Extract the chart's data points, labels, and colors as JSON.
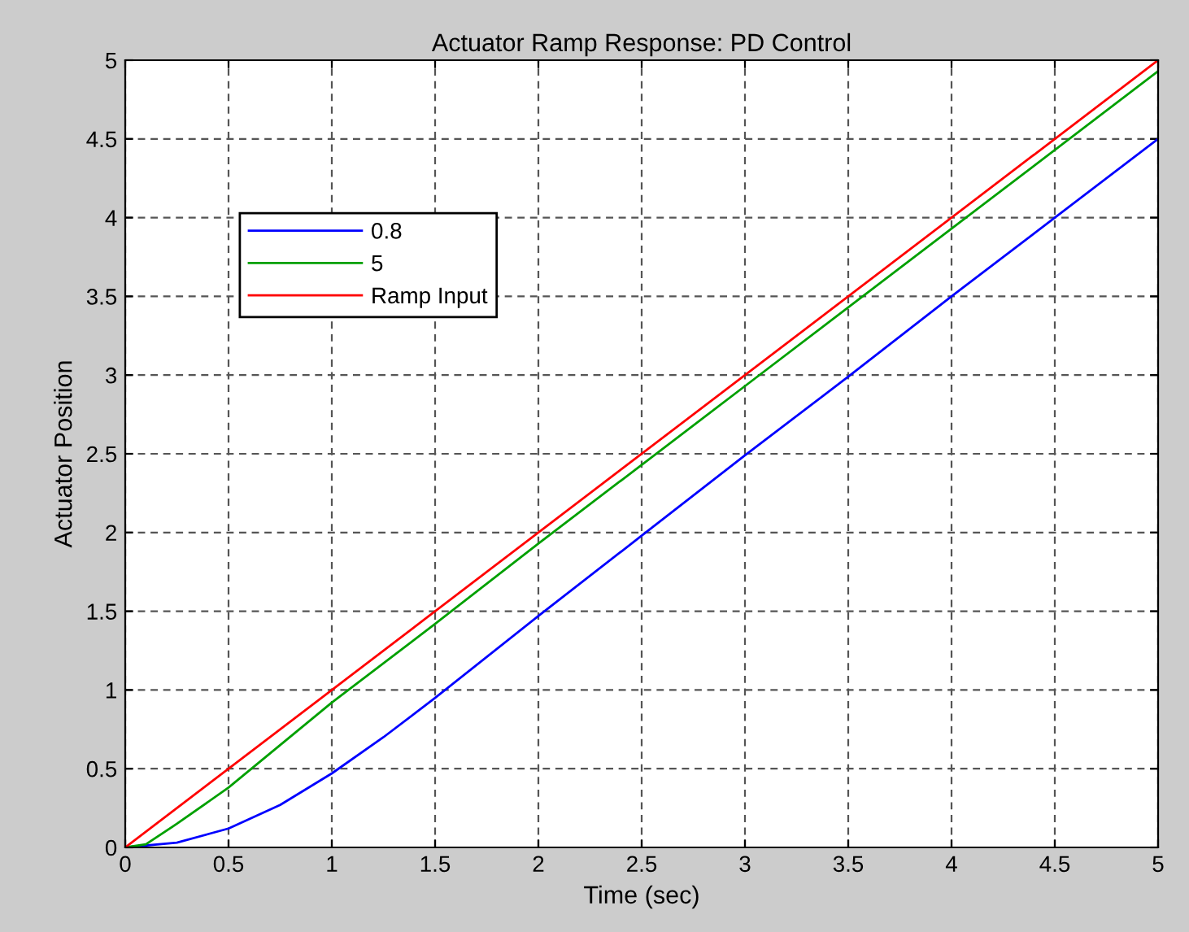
{
  "chart_data": {
    "type": "line",
    "title": "Actuator Ramp Response: PD Control",
    "xlabel": "Time (sec)",
    "ylabel": "Actuator Position",
    "series": [
      {
        "name": "0.8",
        "color": "#0000ff",
        "x": [
          0,
          0.25,
          0.5,
          0.75,
          1,
          1.25,
          1.5,
          2,
          2.5,
          3,
          3.5,
          4,
          4.5,
          5
        ],
        "values": [
          0,
          0.03,
          0.12,
          0.27,
          0.47,
          0.7,
          0.95,
          1.47,
          1.98,
          2.49,
          2.99,
          3.5,
          4.0,
          4.5
        ]
      },
      {
        "name": "5",
        "color": "#00a000",
        "x": [
          0,
          0.1,
          0.25,
          0.5,
          0.75,
          1,
          1.5,
          2,
          3,
          4,
          5
        ],
        "values": [
          0,
          0.02,
          0.15,
          0.38,
          0.65,
          0.92,
          1.42,
          1.93,
          2.93,
          3.93,
          4.93
        ]
      },
      {
        "name": "Ramp Input",
        "color": "#ff0000",
        "x": [
          0,
          5
        ],
        "values": [
          0,
          5
        ]
      }
    ],
    "xlim": [
      0,
      5
    ],
    "ylim": [
      0,
      5
    ],
    "xticks": [
      0,
      0.5,
      1,
      1.5,
      2,
      2.5,
      3,
      3.5,
      4,
      4.5,
      5
    ],
    "yticks": [
      0,
      0.5,
      1,
      1.5,
      2,
      2.5,
      3,
      3.5,
      4,
      4.5,
      5
    ],
    "grid": true,
    "legend": "top left",
    "line_style": "solid"
  }
}
